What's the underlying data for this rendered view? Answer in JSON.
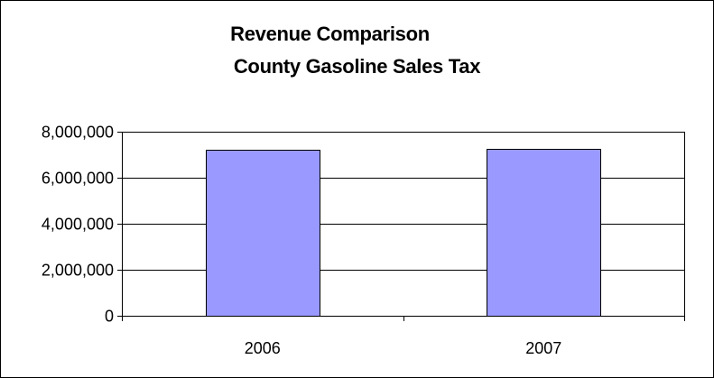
{
  "chart_data": {
    "type": "bar",
    "title": "Revenue Comparison",
    "subtitle": "County Gasoline Sales Tax",
    "categories": [
      "2006",
      "2007"
    ],
    "values": [
      7200000,
      7250000
    ],
    "xlabel": "",
    "ylabel": "",
    "ylim": [
      0,
      8000000
    ],
    "yticks": [
      0,
      2000000,
      4000000,
      6000000,
      8000000
    ],
    "ytick_labels": [
      "0",
      "2,000,000",
      "4,000,000",
      "6,000,000",
      "8,000,000"
    ],
    "grid": true,
    "legend": "none",
    "colors": {
      "bar_fill": "#9999ff",
      "bar_stroke": "#000000",
      "plot_background": "#ffffff",
      "gridline": "#000000"
    }
  }
}
